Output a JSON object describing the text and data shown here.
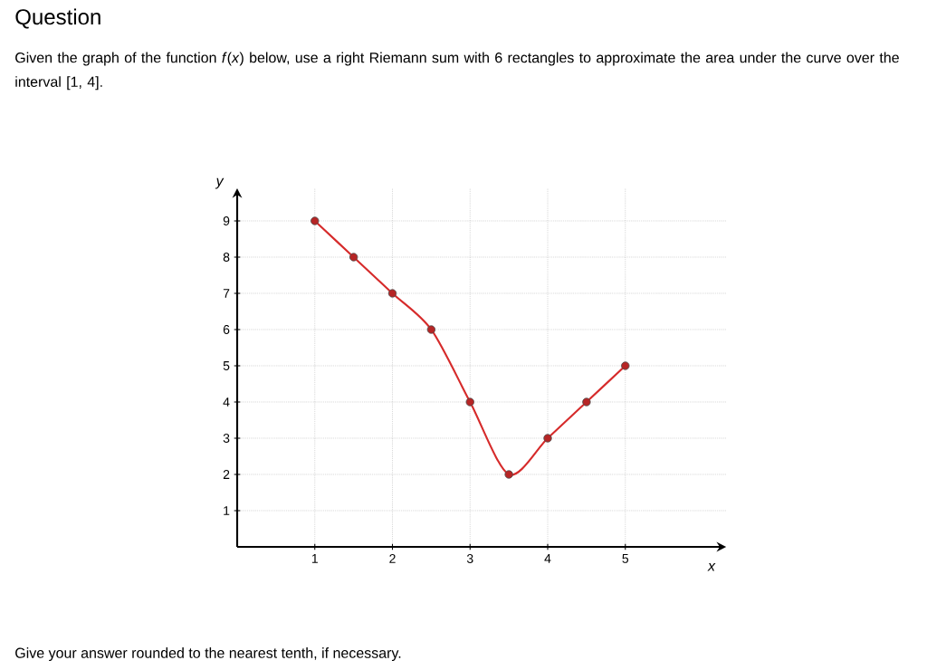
{
  "chart_data": {
    "type": "line",
    "title": "Question",
    "subtitle": "Given the graph of the function *f*(*x*) below, use a right Riemann sum with 6 rectangles to approximate the area under the curve over the interval [1, 4].",
    "xlabel": "x",
    "ylabel": "y",
    "annotations": [
      "Give your answer rounded to the nearest tenth, if necessary."
    ],
    "x": [
      1,
      1.5,
      2,
      2.5,
      3,
      3.5,
      4,
      4.5,
      5
    ],
    "series": [
      {
        "color": "#d62b2b",
        "values": [
          9,
          8,
          7,
          6,
          4,
          2,
          3,
          4,
          5
        ]
      }
    ],
    "xlim": [
      0,
      6.3
    ],
    "ylim": [
      0,
      9.9
    ],
    "xticks": [
      1,
      2,
      3,
      4,
      5
    ],
    "yticks": [
      1,
      2,
      3,
      4,
      5,
      6,
      7,
      8,
      9
    ],
    "grid": true,
    "marker": "circle"
  }
}
